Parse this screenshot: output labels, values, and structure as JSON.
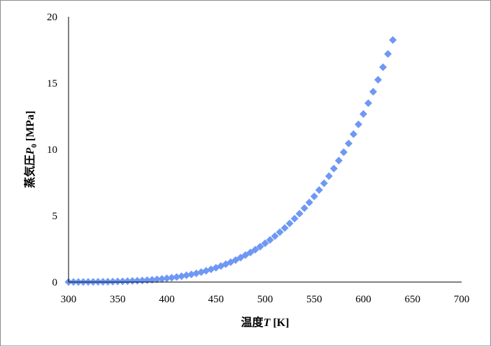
{
  "chart_data": {
    "type": "scatter",
    "xlabel_parts": [
      "温度",
      "T",
      " [K]"
    ],
    "ylabel_parts": [
      "蒸気圧",
      "P",
      "0",
      " [MPa]"
    ],
    "xlim": [
      300,
      700
    ],
    "ylim": [
      0,
      20
    ],
    "x_ticks": [
      "300",
      "350",
      "400",
      "450",
      "500",
      "550",
      "600",
      "650",
      "700"
    ],
    "y_ticks": [
      "0",
      "5",
      "10",
      "15",
      "20"
    ],
    "grid": false,
    "legend": "none",
    "marker": "diamond",
    "marker_color": "#6e98f4",
    "series": [
      {
        "x": [
          300,
          305,
          310,
          315,
          320,
          325,
          330,
          335,
          340,
          345,
          350,
          355,
          360,
          365,
          370,
          375,
          380,
          385,
          390,
          395,
          400,
          405,
          410,
          415,
          420,
          425,
          430,
          435,
          440,
          445,
          450,
          455,
          460,
          465,
          470,
          475,
          480,
          485,
          490,
          495,
          500,
          505,
          510,
          515,
          520,
          525,
          530,
          535,
          540,
          545,
          550,
          555,
          560,
          565,
          570,
          575,
          580,
          585,
          590,
          595,
          600,
          605,
          610,
          615,
          620,
          625,
          630
        ],
        "y": [
          0.004,
          0.005,
          0.006,
          0.008,
          0.01,
          0.013,
          0.017,
          0.022,
          0.028,
          0.035,
          0.044,
          0.055,
          0.068,
          0.083,
          0.1,
          0.12,
          0.145,
          0.173,
          0.205,
          0.24,
          0.28,
          0.33,
          0.38,
          0.44,
          0.51,
          0.58,
          0.66,
          0.75,
          0.85,
          0.96,
          1.08,
          1.21,
          1.35,
          1.5,
          1.66,
          1.84,
          2.03,
          2.23,
          2.44,
          2.67,
          2.92,
          3.18,
          3.46,
          3.76,
          4.08,
          4.42,
          4.78,
          5.16,
          5.57,
          6.0,
          6.46,
          6.94,
          7.45,
          7.99,
          8.56,
          9.16,
          9.79,
          10.45,
          11.15,
          11.89,
          12.67,
          13.49,
          14.35,
          15.25,
          16.2,
          17.2,
          18.25
        ]
      }
    ]
  }
}
